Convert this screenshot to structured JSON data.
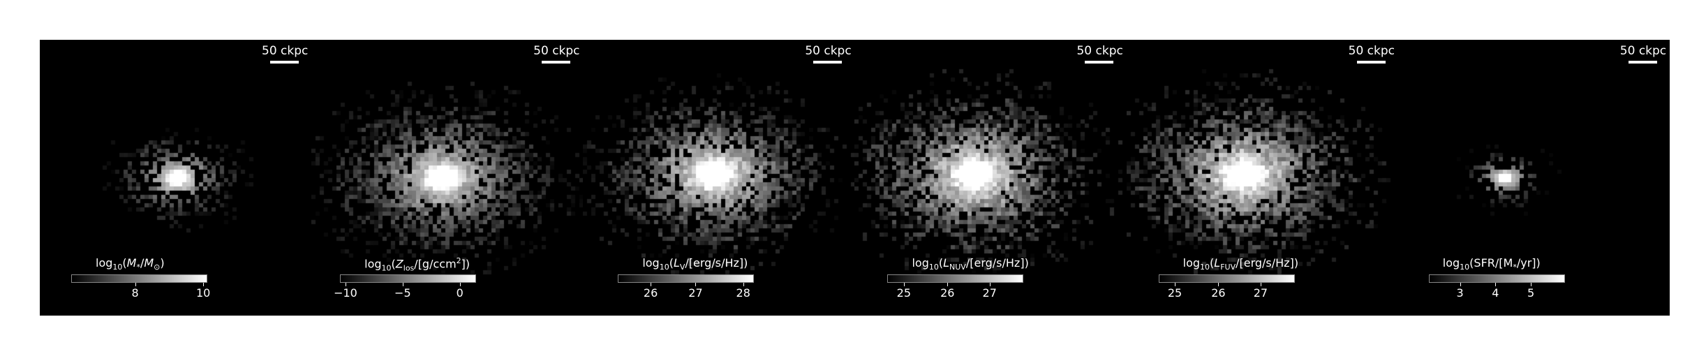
{
  "scale_bar_label": "50 ckpc",
  "panels": [
    {
      "id": "stellar-mass",
      "colorbar": {
        "title_html": "log<sub>10</sub>(<i>M</i><sub>*</sub>/<i>M</i><sub>⊙</sub>)",
        "ticks": [
          "8",
          "10"
        ]
      }
    },
    {
      "id": "metallicity",
      "colorbar": {
        "title_html": "log<sub>10</sub>(<i>Z</i><sub>los</sub>/[g/ccm<sup>2</sup>])",
        "ticks": [
          "−10",
          "−5",
          "0"
        ]
      }
    },
    {
      "id": "v-band",
      "colorbar": {
        "title_html": "log<sub>10</sub>(<i>L</i><sub>V</sub>/[erg/s/Hz])",
        "ticks": [
          "26",
          "27",
          "28"
        ]
      }
    },
    {
      "id": "nuv",
      "colorbar": {
        "title_html": "log<sub>10</sub>(<i>L</i><sub>NUV</sub>/[erg/s/Hz])",
        "ticks": [
          "25",
          "26",
          "27"
        ]
      }
    },
    {
      "id": "fuv",
      "colorbar": {
        "title_html": "log<sub>10</sub>(<i>L</i><sub>FUV</sub>/[erg/s/Hz])",
        "ticks": [
          "25",
          "26",
          "27"
        ]
      }
    },
    {
      "id": "sfr",
      "colorbar": {
        "title_html": "log<sub>10</sub>(SFR/[M<sub>*</sub>/yr])",
        "ticks": [
          "3",
          "4",
          "5"
        ]
      }
    }
  ]
}
